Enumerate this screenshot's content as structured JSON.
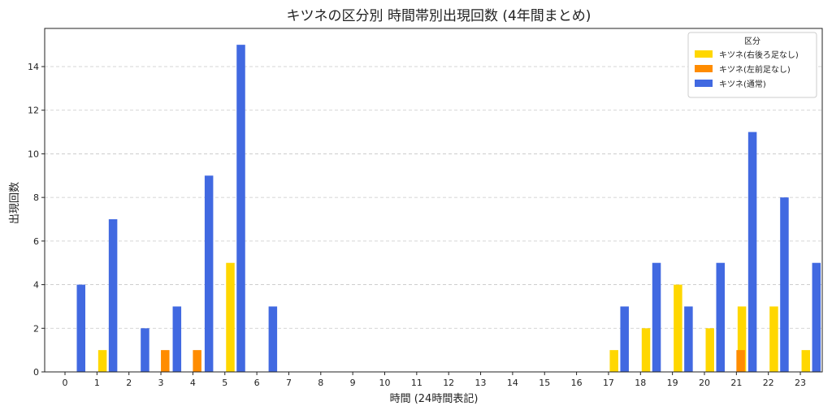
{
  "chart_data": {
    "type": "bar",
    "title": "キツネの区分別 時間帯別出現回数 (4年間まとめ)",
    "xlabel": "時間 (24時間表記)",
    "ylabel": "出現回数",
    "categories": [
      "0",
      "1",
      "2",
      "3",
      "4",
      "5",
      "6",
      "7",
      "8",
      "9",
      "10",
      "11",
      "12",
      "13",
      "14",
      "15",
      "16",
      "17",
      "18",
      "19",
      "20",
      "21",
      "22",
      "23"
    ],
    "yticks": [
      0,
      2,
      4,
      6,
      8,
      10,
      12,
      14
    ],
    "ylim": [
      0,
      15.75
    ],
    "grid": "horizontal dashed",
    "legend": {
      "title": "区分",
      "placement": "top-right"
    },
    "series": [
      {
        "name": "キツネ(右後ろ足なし)",
        "color": "#FFD700",
        "values": [
          0,
          1,
          0,
          0,
          0,
          5,
          0,
          0,
          0,
          0,
          0,
          0,
          0,
          0,
          0,
          0,
          0,
          1,
          2,
          4,
          2,
          3,
          3,
          1
        ]
      },
      {
        "name": "キツネ(左前足なし)",
        "color": "#FF8C00",
        "values": [
          0,
          0,
          0,
          1,
          1,
          0,
          0,
          0,
          0,
          0,
          0,
          0,
          0,
          0,
          0,
          0,
          0,
          0,
          0,
          0,
          0,
          1,
          0,
          0
        ]
      },
      {
        "name": "キツネ(通常)",
        "color": "#4169E1",
        "values": [
          4,
          7,
          2,
          3,
          9,
          15,
          3,
          0,
          0,
          0,
          0,
          0,
          0,
          0,
          0,
          0,
          0,
          3,
          5,
          3,
          5,
          11,
          8,
          5
        ]
      }
    ]
  }
}
